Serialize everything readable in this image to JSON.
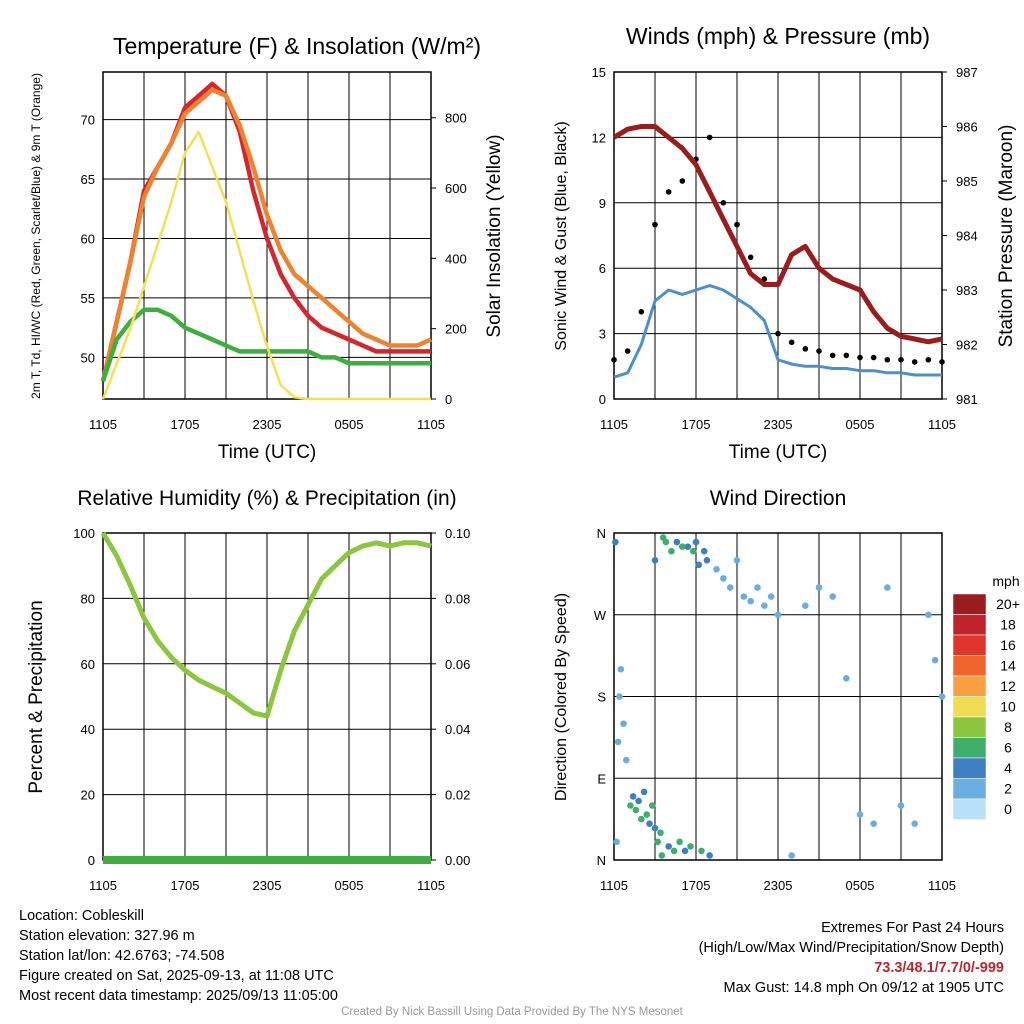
{
  "chart_data": [
    {
      "type": "line",
      "title": "Temperature (F) & Insolation (W/m²)",
      "xlabel": "Time (UTC)",
      "ylabel": "2m T, Td, HI/WC (Red, Green, Scarlet/Blue) & 9m T (Orange)",
      "y2label": "Solar Insolation (Yellow)",
      "x_ticks": [
        "1105",
        "1705",
        "2305",
        "0505",
        "1105"
      ],
      "ylim": [
        46.5,
        74
      ],
      "y_ticks": [
        50,
        55,
        60,
        65,
        70
      ],
      "y2lim": [
        0,
        930
      ],
      "y2_ticks": [
        0,
        200,
        400,
        600,
        800
      ],
      "x": [
        0,
        1,
        2,
        3,
        4,
        5,
        6,
        7,
        8,
        9,
        10,
        11,
        12,
        13,
        14,
        15,
        16,
        17,
        18,
        19,
        20,
        21,
        22,
        23,
        24
      ],
      "series": [
        {
          "name": "2m T",
          "axis": "left",
          "color": "#d7262b",
          "values": [
            48,
            53,
            58,
            64,
            66,
            68,
            71,
            72,
            73,
            72,
            69,
            64,
            60,
            57,
            55,
            53.5,
            52.5,
            52,
            51.5,
            51,
            50.5,
            50.5,
            50.5,
            50.5,
            50.5
          ]
        },
        {
          "name": "9m T",
          "axis": "left",
          "color": "#f0822d",
          "values": [
            48,
            53,
            58,
            63.5,
            66,
            68,
            70.5,
            71.5,
            72.5,
            72,
            69.5,
            66,
            62,
            59,
            57,
            56,
            55,
            54,
            53,
            52,
            51.5,
            51,
            51,
            51,
            51.5
          ]
        },
        {
          "name": "2m Td",
          "axis": "left",
          "color": "#3fae3f",
          "values": [
            48,
            51.5,
            53,
            54,
            54,
            53.5,
            52.5,
            52,
            51.5,
            51,
            50.5,
            50.5,
            50.5,
            50.5,
            50.5,
            50.5,
            50,
            50,
            49.5,
            49.5,
            49.5,
            49.5,
            49.5,
            49.5,
            49.5
          ]
        },
        {
          "name": "Solar Insolation",
          "axis": "right",
          "color": "#f5e050",
          "values": [
            0,
            100,
            200,
            320,
            440,
            560,
            700,
            760,
            660,
            560,
            420,
            280,
            150,
            40,
            5,
            0,
            0,
            0,
            0,
            0,
            0,
            0,
            0,
            0,
            0
          ]
        }
      ]
    },
    {
      "type": "scatter",
      "title": "Winds (mph) & Pressure (mb)",
      "xlabel": "Time (UTC)",
      "ylabel": "Sonic Wind & Gust (Blue, Black)",
      "y2label": "Station Pressure (Maroon)",
      "x_ticks": [
        "1105",
        "1705",
        "2305",
        "0505",
        "1105"
      ],
      "ylim": [
        0,
        15
      ],
      "y_ticks": [
        0,
        3,
        6,
        9,
        12,
        15
      ],
      "y2lim": [
        981,
        987
      ],
      "y2_ticks": [
        981,
        982,
        983,
        984,
        985,
        986,
        987
      ],
      "x": [
        0,
        1,
        2,
        3,
        4,
        5,
        6,
        7,
        8,
        9,
        10,
        11,
        12,
        13,
        14,
        15,
        16,
        17,
        18,
        19,
        20,
        21,
        22,
        23,
        24
      ],
      "series": [
        {
          "name": "Sonic Wind",
          "kind": "line",
          "color": "#4a90cc",
          "values": [
            1,
            1.2,
            2.5,
            4.5,
            5,
            4.8,
            5,
            5.2,
            5,
            4.6,
            4.2,
            3.6,
            1.8,
            1.6,
            1.5,
            1.5,
            1.4,
            1.4,
            1.3,
            1.3,
            1.2,
            1.2,
            1.1,
            1.1,
            1.1
          ]
        },
        {
          "name": "Gust",
          "kind": "scatter",
          "color": "#000000",
          "values": [
            1.8,
            2.2,
            4,
            8,
            9.5,
            10,
            11,
            12,
            9,
            8,
            6.5,
            5.5,
            3,
            2.6,
            2.3,
            2.2,
            2,
            2,
            1.9,
            1.9,
            1.8,
            1.8,
            1.7,
            1.8,
            1.7
          ]
        },
        {
          "name": "Station Pressure",
          "kind": "line",
          "axis": "right",
          "color": "#9b1c1c",
          "values": [
            985.8,
            985.95,
            986,
            986,
            985.8,
            985.6,
            985.3,
            984.8,
            984.3,
            983.8,
            983.3,
            983.1,
            983.1,
            983.65,
            983.8,
            983.4,
            983.2,
            983.1,
            983,
            982.6,
            982.3,
            982.15,
            982.1,
            982.05,
            982.1
          ]
        }
      ]
    },
    {
      "type": "line",
      "title": "Relative Humidity (%) & Precipitation (in)",
      "ylabel": "Percent & Precipitation",
      "x_ticks": [
        "1105",
        "1705",
        "2305",
        "0505",
        "1105"
      ],
      "ylim": [
        0,
        100
      ],
      "y_ticks": [
        0,
        20,
        40,
        60,
        80,
        100
      ],
      "y2lim": [
        0,
        0.1
      ],
      "y2_ticks": [
        "0.00",
        "0.02",
        "0.04",
        "0.06",
        "0.08",
        "0.10"
      ],
      "x": [
        0,
        1,
        2,
        3,
        4,
        5,
        6,
        7,
        8,
        9,
        10,
        11,
        12,
        13,
        14,
        15,
        16,
        17,
        18,
        19,
        20,
        21,
        22,
        23,
        24
      ],
      "series": [
        {
          "name": "Relative Humidity",
          "color": "#8cc63f",
          "values": [
            100,
            93,
            84,
            74,
            67,
            62,
            58,
            55,
            53,
            51,
            48,
            45,
            44,
            58,
            70,
            78,
            86,
            90,
            94,
            96,
            97,
            96,
            97,
            97,
            96
          ]
        },
        {
          "name": "Precipitation",
          "axis": "right",
          "color": "#3fae3f",
          "values": [
            0,
            0,
            0,
            0,
            0,
            0,
            0,
            0,
            0,
            0,
            0,
            0,
            0,
            0,
            0,
            0,
            0,
            0,
            0,
            0,
            0,
            0,
            0,
            0,
            0
          ]
        }
      ]
    },
    {
      "type": "scatter",
      "title": "Wind Direction",
      "ylabel": "Direction (Colored By Speed)",
      "x_ticks": [
        "1105",
        "1705",
        "2305",
        "0505",
        "1105"
      ],
      "y_ticks": [
        "N",
        "E",
        "S",
        "W",
        "N"
      ],
      "ylim": [
        0,
        360
      ],
      "points": [
        {
          "x": 0.1,
          "dir": 350,
          "spd": 4
        },
        {
          "x": 0.2,
          "dir": 20,
          "spd": 2
        },
        {
          "x": 0.3,
          "dir": 130,
          "spd": 1
        },
        {
          "x": 0.4,
          "dir": 180,
          "spd": 1
        },
        {
          "x": 0.5,
          "dir": 210,
          "spd": 1
        },
        {
          "x": 0.7,
          "dir": 150,
          "spd": 1
        },
        {
          "x": 0.9,
          "dir": 110,
          "spd": 1
        },
        {
          "x": 1.2,
          "dir": 60,
          "spd": 5
        },
        {
          "x": 1.4,
          "dir": 70,
          "spd": 4
        },
        {
          "x": 1.6,
          "dir": 55,
          "spd": 5
        },
        {
          "x": 1.8,
          "dir": 65,
          "spd": 4
        },
        {
          "x": 2.0,
          "dir": 45,
          "spd": 6
        },
        {
          "x": 2.2,
          "dir": 75,
          "spd": 3
        },
        {
          "x": 2.4,
          "dir": 50,
          "spd": 5
        },
        {
          "x": 2.6,
          "dir": 40,
          "spd": 4
        },
        {
          "x": 2.8,
          "dir": 60,
          "spd": 6
        },
        {
          "x": 3.0,
          "dir": 35,
          "spd": 4
        },
        {
          "x": 3.0,
          "dir": 330,
          "spd": 4
        },
        {
          "x": 3.2,
          "dir": 20,
          "spd": 6
        },
        {
          "x": 3.4,
          "dir": 30,
          "spd": 5
        },
        {
          "x": 3.5,
          "dir": 5,
          "spd": 5
        },
        {
          "x": 3.6,
          "dir": 355,
          "spd": 6
        },
        {
          "x": 3.8,
          "dir": 350,
          "spd": 5
        },
        {
          "x": 4.0,
          "dir": 15,
          "spd": 4
        },
        {
          "x": 4.2,
          "dir": 340,
          "spd": 6
        },
        {
          "x": 4.4,
          "dir": 10,
          "spd": 5
        },
        {
          "x": 4.6,
          "dir": 350,
          "spd": 4
        },
        {
          "x": 4.8,
          "dir": 20,
          "spd": 6
        },
        {
          "x": 5.0,
          "dir": 345,
          "spd": 5
        },
        {
          "x": 5.2,
          "dir": 10,
          "spd": 4
        },
        {
          "x": 5.4,
          "dir": 345,
          "spd": 4
        },
        {
          "x": 5.6,
          "dir": 15,
          "spd": 6
        },
        {
          "x": 5.8,
          "dir": 340,
          "spd": 5
        },
        {
          "x": 6.0,
          "dir": 350,
          "spd": 4
        },
        {
          "x": 6.2,
          "dir": 325,
          "spd": 4
        },
        {
          "x": 6.4,
          "dir": 10,
          "spd": 5
        },
        {
          "x": 6.6,
          "dir": 340,
          "spd": 4
        },
        {
          "x": 6.8,
          "dir": 330,
          "spd": 3
        },
        {
          "x": 7.0,
          "dir": 5,
          "spd": 3
        },
        {
          "x": 7.5,
          "dir": 320,
          "spd": 2
        },
        {
          "x": 8.0,
          "dir": 310,
          "spd": 1
        },
        {
          "x": 8.5,
          "dir": 300,
          "spd": 1
        },
        {
          "x": 9.0,
          "dir": 330,
          "spd": 1
        },
        {
          "x": 9.5,
          "dir": 290,
          "spd": 1
        },
        {
          "x": 10.0,
          "dir": 285,
          "spd": 1
        },
        {
          "x": 10.5,
          "dir": 300,
          "spd": 2
        },
        {
          "x": 11.0,
          "dir": 280,
          "spd": 1
        },
        {
          "x": 11.5,
          "dir": 290,
          "spd": 1
        },
        {
          "x": 12.0,
          "dir": 270,
          "spd": 1
        },
        {
          "x": 13.0,
          "dir": 5,
          "spd": 1
        },
        {
          "x": 14.0,
          "dir": 280,
          "spd": 1
        },
        {
          "x": 15.0,
          "dir": 300,
          "spd": 1
        },
        {
          "x": 16.0,
          "dir": 290,
          "spd": 1
        },
        {
          "x": 17.0,
          "dir": 200,
          "spd": 1
        },
        {
          "x": 18.0,
          "dir": 50,
          "spd": 1
        },
        {
          "x": 19.0,
          "dir": 40,
          "spd": 2
        },
        {
          "x": 20.0,
          "dir": 300,
          "spd": 1
        },
        {
          "x": 21.0,
          "dir": 60,
          "spd": 2
        },
        {
          "x": 22.0,
          "dir": 40,
          "spd": 1
        },
        {
          "x": 23.0,
          "dir": 270,
          "spd": 1
        },
        {
          "x": 23.5,
          "dir": 220,
          "spd": 1
        },
        {
          "x": 24.0,
          "dir": 180,
          "spd": 2
        }
      ],
      "colorbar": {
        "unit": "mph",
        "labels": [
          "20+",
          "18",
          "16",
          "14",
          "12",
          "10",
          "8",
          "6",
          "4",
          "2",
          "0"
        ],
        "colors": [
          "#9b1c1c",
          "#c0242b",
          "#e0352b",
          "#f0652d",
          "#f8a040",
          "#f0dc50",
          "#8cc63f",
          "#3fae6a",
          "#3d7fc0",
          "#6aaee0",
          "#b8e0f8"
        ]
      }
    }
  ],
  "info": {
    "location": "Location: Cobleskill",
    "elevation": "Station elevation: 327.96 m",
    "latlon": "Station lat/lon: 42.6763; -74.508",
    "created": "Figure created on Sat, 2025-09-13, at 11:08 UTC",
    "recent": "Most recent data timestamp: 2025/09/13 11:05:00"
  },
  "extremes": {
    "title": "Extremes For Past 24 Hours",
    "subtitle": "(High/Low/Max Wind/Precipitation/Snow Depth)",
    "values": "73.3/48.1/7.7/0/-999",
    "max_gust": "Max Gust: 14.8 mph On 09/12 at 1905 UTC"
  },
  "credit": "Created By Nick Bassill Using Data Provided By The NYS Mesonet"
}
